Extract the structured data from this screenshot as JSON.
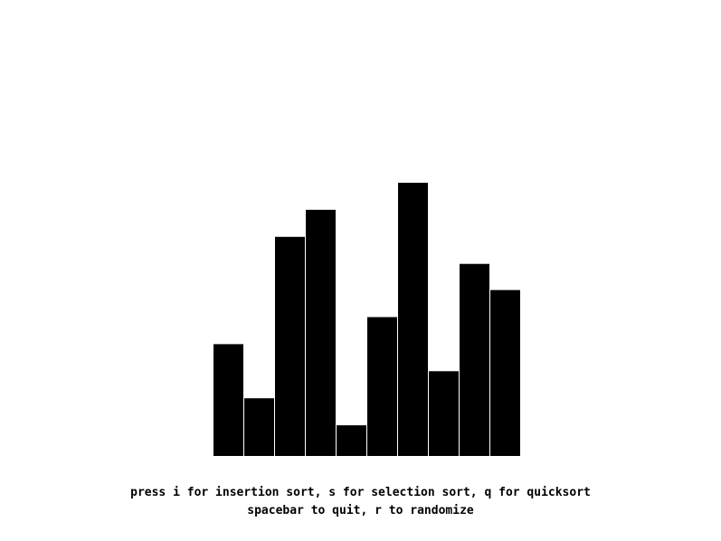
{
  "bars": {
    "values": [
      124,
      64,
      243,
      273,
      34,
      154,
      303,
      94,
      213,
      184
    ],
    "max_value": 303,
    "fill_color": "#000000",
    "separator_color": "#ffffff"
  },
  "instructions": {
    "line1": "press i for insertion sort, s for selection sort, q for quicksort",
    "line2": "spacebar to quit, r to randomize"
  }
}
